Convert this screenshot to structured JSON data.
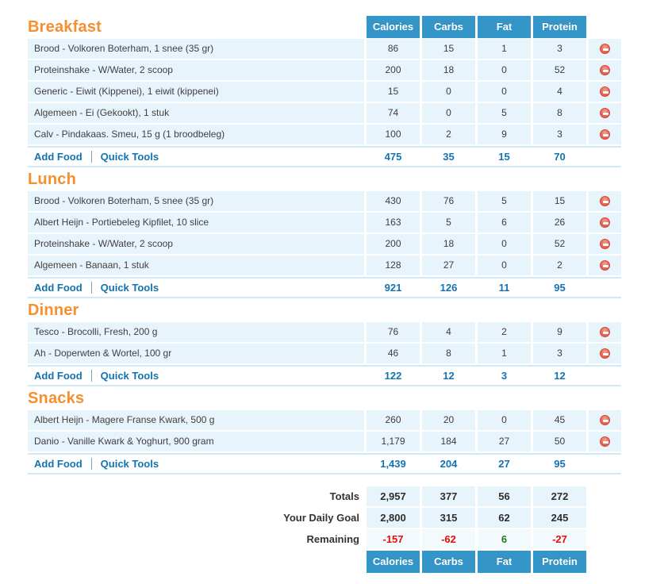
{
  "columns": [
    "Calories",
    "Carbs",
    "Fat",
    "Protein"
  ],
  "links": {
    "add_food": "Add Food",
    "quick_tools": "Quick Tools"
  },
  "colors": {
    "header_blue": "#3496c8",
    "row_light_blue": "#e7f4fc",
    "meal_title_orange": "#f78f2e",
    "link_blue": "#1373b2",
    "negative_red": "#e80b0b",
    "positive_green": "#217a21"
  },
  "meals": [
    {
      "name": "Breakfast",
      "items": [
        {
          "desc": "Brood - Volkoren Boterham, 1 snee (35 gr)",
          "values": [
            "86",
            "15",
            "1",
            "3"
          ]
        },
        {
          "desc": "Proteinshake - W/Water, 2 scoop",
          "values": [
            "200",
            "18",
            "0",
            "52"
          ]
        },
        {
          "desc": "Generic - Eiwit (Kippenei), 1 eiwit (kippenei)",
          "values": [
            "15",
            "0",
            "0",
            "4"
          ]
        },
        {
          "desc": "Algemeen - Ei (Gekookt), 1 stuk",
          "values": [
            "74",
            "0",
            "5",
            "8"
          ]
        },
        {
          "desc": "Calv - Pindakaas. Smeu, 15 g (1 broodbeleg)",
          "values": [
            "100",
            "2",
            "9",
            "3"
          ]
        }
      ],
      "subtotal": [
        "475",
        "35",
        "15",
        "70"
      ]
    },
    {
      "name": "Lunch",
      "items": [
        {
          "desc": "Brood - Volkoren Boterham, 5 snee (35 gr)",
          "values": [
            "430",
            "76",
            "5",
            "15"
          ]
        },
        {
          "desc": "Albert Heijn - Portiebeleg Kipfilet, 10 slice",
          "values": [
            "163",
            "5",
            "6",
            "26"
          ]
        },
        {
          "desc": "Proteinshake - W/Water, 2 scoop",
          "values": [
            "200",
            "18",
            "0",
            "52"
          ]
        },
        {
          "desc": "Algemeen - Banaan, 1 stuk",
          "values": [
            "128",
            "27",
            "0",
            "2"
          ]
        }
      ],
      "subtotal": [
        "921",
        "126",
        "11",
        "95"
      ]
    },
    {
      "name": "Dinner",
      "items": [
        {
          "desc": "Tesco - Brocolli, Fresh, 200 g",
          "values": [
            "76",
            "4",
            "2",
            "9"
          ]
        },
        {
          "desc": "Ah - Doperwten & Wortel, 100 gr",
          "values": [
            "46",
            "8",
            "1",
            "3"
          ]
        }
      ],
      "subtotal": [
        "122",
        "12",
        "3",
        "12"
      ]
    },
    {
      "name": "Snacks",
      "items": [
        {
          "desc": "Albert Heijn - Magere Franse Kwark, 500 g",
          "values": [
            "260",
            "20",
            "0",
            "45"
          ]
        },
        {
          "desc": "Danio - Vanille Kwark & Yoghurt, 900 gram",
          "values": [
            "1,179",
            "184",
            "27",
            "50"
          ]
        }
      ],
      "subtotal": [
        "1,439",
        "204",
        "27",
        "95"
      ]
    }
  ],
  "summary": {
    "totals": {
      "label": "Totals",
      "values": [
        "2,957",
        "377",
        "56",
        "272"
      ]
    },
    "goal": {
      "label": "Your Daily Goal",
      "values": [
        "2,800",
        "315",
        "62",
        "245"
      ]
    },
    "remaining": {
      "label": "Remaining",
      "values": [
        "-157",
        "-62",
        "6",
        "-27"
      ]
    }
  }
}
